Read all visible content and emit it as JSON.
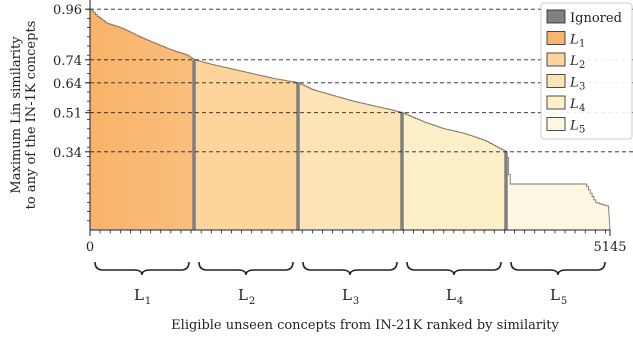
{
  "chart_data": {
    "type": "area",
    "xlabel": "Eligible unseen concepts from IN-21K ranked by similarity",
    "ylabel": [
      "Maximum Lin similarity",
      "to any of the IN-1K concepts"
    ],
    "xlim": [
      0,
      5145
    ],
    "ylim": [
      0,
      1.0
    ],
    "x_ticks": [
      0,
      5145
    ],
    "y_ticks": [
      0.96,
      0.74,
      0.64,
      0.51,
      0.34
    ],
    "grid": false,
    "legend_placement": "top-right",
    "thresholds": [
      0.96,
      0.74,
      0.64,
      0.51,
      0.34
    ],
    "level_boundaries": [
      0,
      1029,
      2058,
      3087,
      4116,
      5145
    ],
    "curve": {
      "x": [
        0,
        70,
        160,
        300,
        420,
        540,
        650,
        760,
        860,
        960,
        1029,
        1200,
        1400,
        1600,
        1800,
        2058,
        2200,
        2400,
        2600,
        2800,
        3000,
        3087,
        3300,
        3500,
        3700,
        3900,
        4116,
        4150,
        4300,
        4600,
        4900,
        5000,
        5145
      ],
      "y": [
        0.96,
        0.93,
        0.9,
        0.88,
        0.855,
        0.83,
        0.81,
        0.79,
        0.775,
        0.76,
        0.74,
        0.72,
        0.7,
        0.68,
        0.66,
        0.64,
        0.61,
        0.585,
        0.56,
        0.54,
        0.52,
        0.51,
        0.47,
        0.44,
        0.42,
        0.39,
        0.34,
        0.2,
        0.2,
        0.2,
        0.2,
        0.12,
        0.1
      ]
    },
    "series": [
      {
        "name": "Ignored",
        "color": "#808080"
      },
      {
        "name": "L",
        "sub": "1",
        "color": "#f9b56e"
      },
      {
        "name": "L",
        "sub": "2",
        "color": "#fcd49c"
      },
      {
        "name": "L",
        "sub": "3",
        "color": "#fde4b6"
      },
      {
        "name": "L",
        "sub": "4",
        "color": "#fdf0c9"
      },
      {
        "name": "L",
        "sub": "5",
        "color": "#fdf7e1"
      }
    ],
    "levels": [
      {
        "name": "L",
        "sub": "1"
      },
      {
        "name": "L",
        "sub": "2"
      },
      {
        "name": "L",
        "sub": "3"
      },
      {
        "name": "L",
        "sub": "4"
      },
      {
        "name": "L",
        "sub": "5"
      }
    ]
  }
}
